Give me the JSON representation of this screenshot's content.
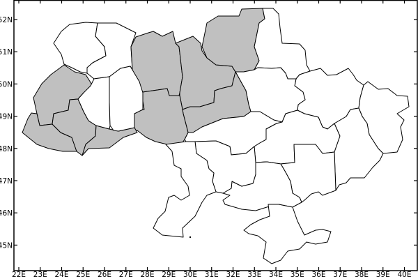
{
  "map": {
    "x_axis": {
      "ticks": [
        22,
        23,
        24,
        25,
        26,
        27,
        28,
        29,
        30,
        31,
        32,
        33,
        34,
        35,
        36,
        37,
        38,
        39,
        40
      ],
      "suffix": "E",
      "range": [
        21.8,
        40.6
      ]
    },
    "y_axis": {
      "ticks": [
        45,
        46,
        47,
        48,
        49,
        50,
        51,
        52
      ],
      "suffix": "N",
      "range": [
        44.2,
        52.6
      ]
    },
    "colors": {
      "highlighted": "#c0c0c0",
      "normal": "#ffffff",
      "border": "#000000",
      "frame": "#000000"
    },
    "regions": {
      "volyn": false,
      "rivne": false,
      "zhytomyr": true,
      "kyiv": true,
      "chernihiv": true,
      "sumy": false,
      "kharkiv": false,
      "luhansk": false,
      "poltava": false,
      "cherkasy": true,
      "vinnytsia": true,
      "lviv": true,
      "zakarpattia": true,
      "ivano-frankivsk": true,
      "chernivtsi": true,
      "ternopil": false,
      "khmelnytskyi": false,
      "kirovohrad": false,
      "dnipropetrovsk": false,
      "donetsk": false,
      "zaporizhzhia": false,
      "kherson": false,
      "mykolaiv": false,
      "odesa": false,
      "crimea": false
    }
  }
}
